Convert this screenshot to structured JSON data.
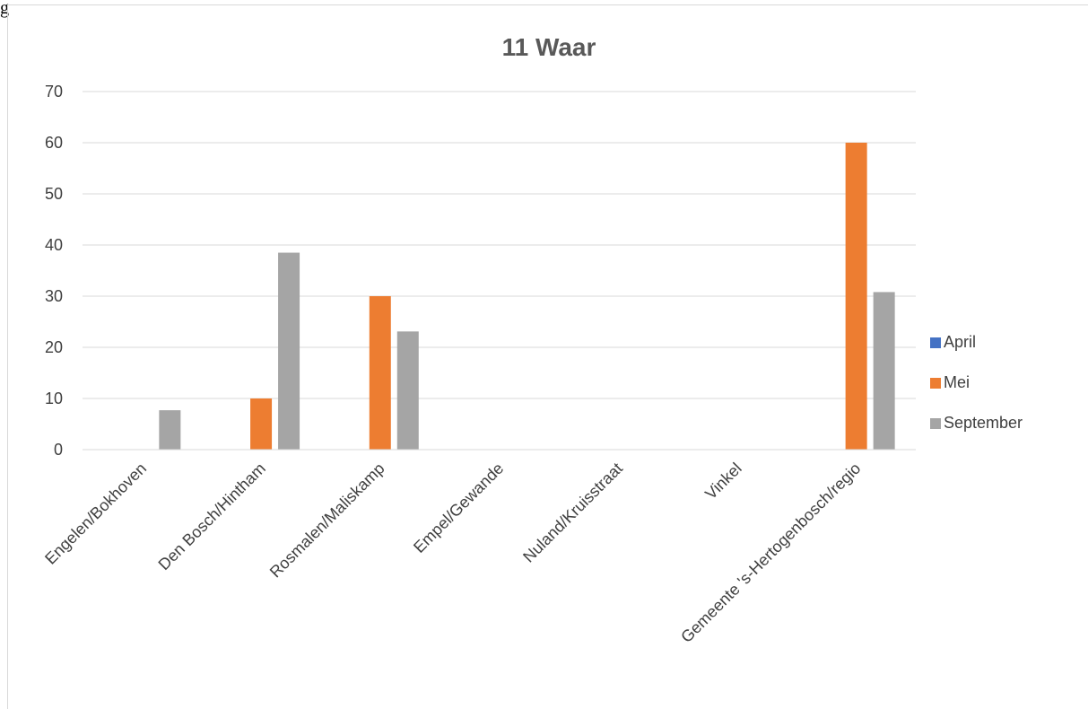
{
  "page": {
    "fragment_text": "g"
  },
  "chart_data": {
    "type": "bar",
    "title": "11 Waar",
    "xlabel": "",
    "ylabel": "",
    "ylim": [
      0,
      70
    ],
    "yticks": [
      0,
      10,
      20,
      30,
      40,
      50,
      60,
      70
    ],
    "grid": true,
    "legend_position": "right",
    "categories": [
      "Engelen/Bokhoven",
      "Den Bosch/Hintham",
      "Rosmalen/Maliskamp",
      "Empel/Gewande",
      "Nuland/Kruisstraat",
      "Vinkel",
      "Gemeente 's-Hertogenbosch/regio"
    ],
    "series": [
      {
        "name": "April",
        "color": "#4472c4",
        "values": [
          0,
          0,
          0,
          0,
          0,
          0,
          0
        ]
      },
      {
        "name": "Mei",
        "color": "#ed7d31",
        "values": [
          0,
          10,
          30,
          0,
          0,
          0,
          60
        ]
      },
      {
        "name": "September",
        "color": "#a5a5a5",
        "values": [
          7.7,
          38.5,
          23.1,
          0,
          0,
          0,
          30.8
        ]
      }
    ]
  }
}
